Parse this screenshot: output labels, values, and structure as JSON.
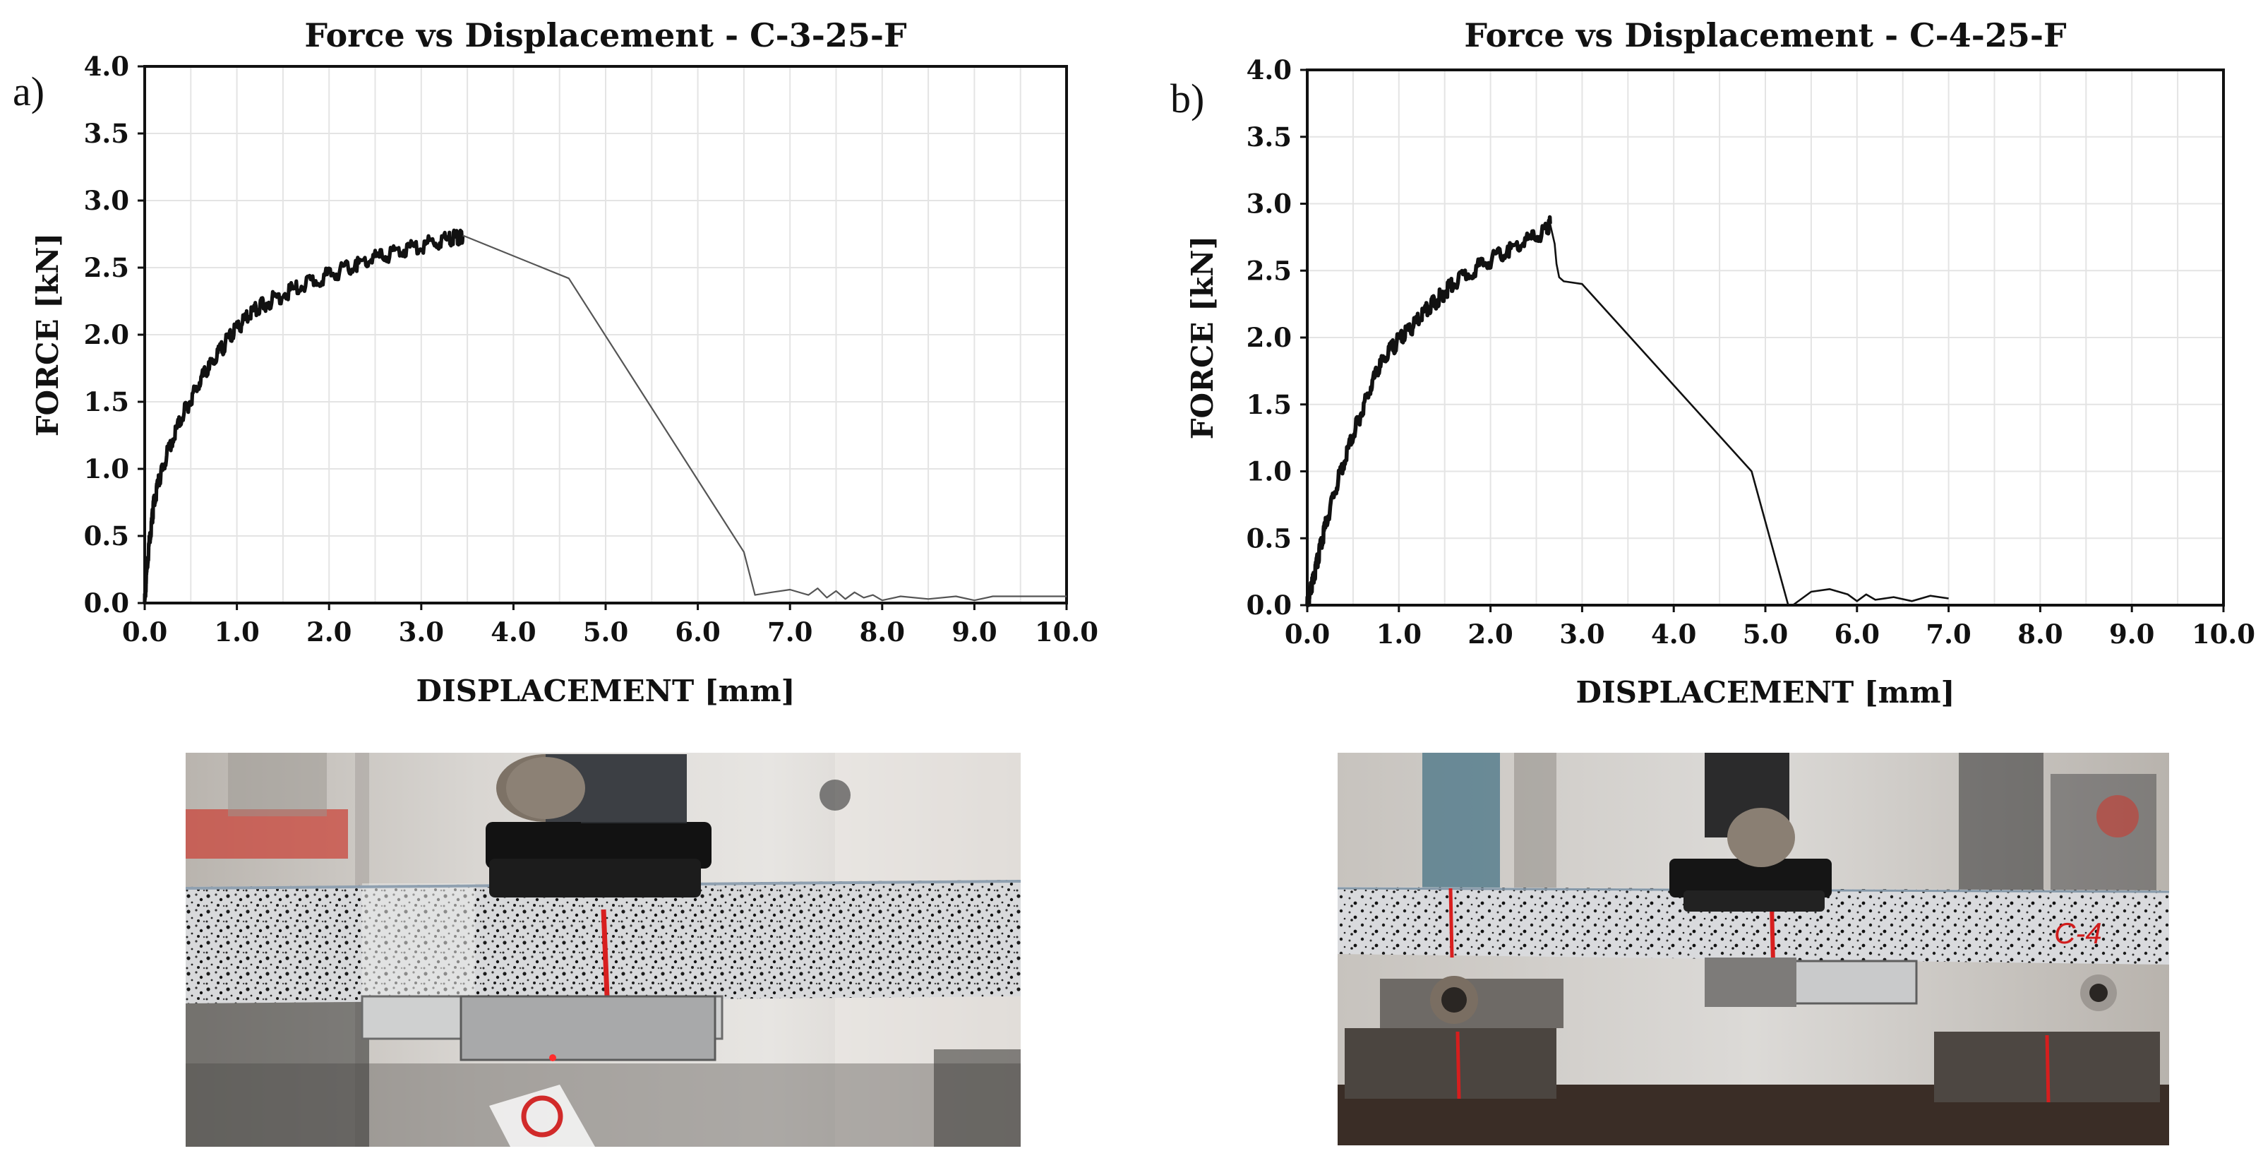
{
  "figure": {
    "panels": [
      {
        "label": "a)"
      },
      {
        "label": "b)"
      }
    ]
  },
  "chart_data": [
    {
      "type": "line",
      "title": "Force vs Displacement - C-3-25-F",
      "xlabel": "DISPLACEMENT [mm]",
      "ylabel": "FORCE [kN]",
      "xlim": [
        0,
        10
      ],
      "ylim": [
        0,
        4
      ],
      "xticks": [
        "0.0",
        "1.0",
        "2.0",
        "3.0",
        "4.0",
        "5.0",
        "6.0",
        "7.0",
        "8.0",
        "9.0",
        "10.0"
      ],
      "yticks": [
        "0.0",
        "0.5",
        "1.0",
        "1.5",
        "2.0",
        "2.5",
        "3.0",
        "3.5",
        "4.0"
      ],
      "grid": true,
      "line_color": "#111111",
      "series": [
        {
          "x": [
            0,
            0.02,
            0.05,
            0.08,
            0.1,
            0.15,
            0.2,
            0.3,
            0.4,
            0.5,
            0.6,
            0.7,
            0.8,
            0.9,
            1.0,
            1.1,
            1.2,
            1.3,
            1.5,
            1.7,
            1.9,
            2.1,
            2.3,
            2.5,
            2.7,
            2.9,
            3.1,
            3.3,
            3.4,
            3.45,
            4.6,
            6.5,
            6.62,
            6.8,
            7.0,
            7.2,
            7.3,
            7.4,
            7.5,
            7.6,
            7.7,
            7.8,
            7.9,
            8.0,
            8.2,
            8.5,
            8.8,
            9.0,
            9.2,
            9.5,
            10.0
          ],
          "y": [
            0,
            0.2,
            0.45,
            0.62,
            0.75,
            0.9,
            1.02,
            1.22,
            1.38,
            1.52,
            1.65,
            1.76,
            1.86,
            1.96,
            2.05,
            2.12,
            2.18,
            2.23,
            2.3,
            2.36,
            2.42,
            2.47,
            2.52,
            2.57,
            2.61,
            2.65,
            2.68,
            2.71,
            2.73,
            2.74,
            2.42,
            0.38,
            0.06,
            0.08,
            0.1,
            0.06,
            0.11,
            0.04,
            0.09,
            0.03,
            0.08,
            0.04,
            0.06,
            0.02,
            0.05,
            0.03,
            0.05,
            0.02,
            0.05,
            0.05,
            0.05
          ]
        }
      ]
    },
    {
      "type": "line",
      "title": "Force vs Displacement - C-4-25-F",
      "xlabel": "DISPLACEMENT [mm]",
      "ylabel": "FORCE [kN]",
      "xlim": [
        0,
        10
      ],
      "ylim": [
        0,
        4
      ],
      "xticks": [
        "0.0",
        "1.0",
        "2.0",
        "3.0",
        "4.0",
        "5.0",
        "6.0",
        "7.0",
        "8.0",
        "9.0",
        "10.0"
      ],
      "yticks": [
        "0.0",
        "0.5",
        "1.0",
        "1.5",
        "2.0",
        "2.5",
        "3.0",
        "3.5",
        "4.0"
      ],
      "grid": true,
      "line_color": "#111111",
      "series": [
        {
          "x": [
            0,
            0.03,
            0.06,
            0.1,
            0.15,
            0.2,
            0.3,
            0.4,
            0.5,
            0.6,
            0.7,
            0.8,
            0.9,
            1.0,
            1.1,
            1.2,
            1.3,
            1.4,
            1.5,
            1.6,
            1.8,
            2.0,
            2.2,
            2.4,
            2.6,
            2.65,
            2.7,
            2.72,
            2.75,
            2.8,
            3.0,
            4.85,
            5.25,
            5.3,
            5.5,
            5.7,
            5.9,
            6.0,
            6.1,
            6.2,
            6.4,
            6.6,
            6.8,
            7.0
          ],
          "y": [
            0,
            0.08,
            0.18,
            0.3,
            0.45,
            0.6,
            0.85,
            1.07,
            1.27,
            1.46,
            1.64,
            1.8,
            1.9,
            1.98,
            2.05,
            2.12,
            2.2,
            2.27,
            2.34,
            2.4,
            2.5,
            2.58,
            2.65,
            2.72,
            2.8,
            2.85,
            2.7,
            2.55,
            2.45,
            2.42,
            2.4,
            1.0,
            0.0,
            0.0,
            0.1,
            0.12,
            0.08,
            0.03,
            0.08,
            0.04,
            0.06,
            0.03,
            0.07,
            0.05
          ]
        }
      ]
    }
  ],
  "photos": [
    {
      "description_label": "",
      "marker_text": ""
    },
    {
      "marker_text": "C-4"
    }
  ]
}
